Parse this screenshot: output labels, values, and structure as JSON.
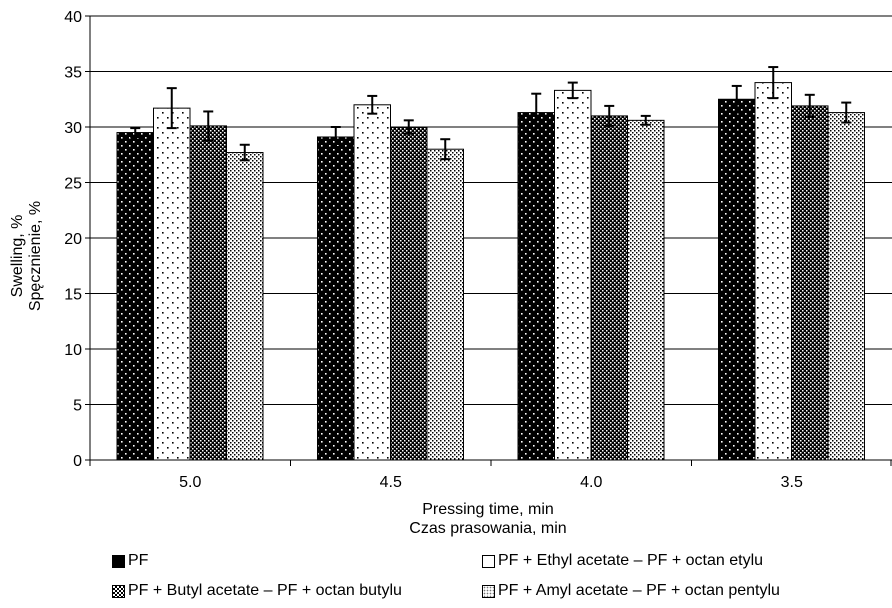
{
  "chart_data": {
    "type": "bar",
    "categories": [
      "5.0",
      "4.5",
      "4.0",
      "3.5"
    ],
    "series": [
      {
        "name": "PF",
        "values": [
          29.5,
          29.1,
          31.3,
          32.5
        ],
        "errors": [
          0.4,
          0.9,
          1.7,
          1.2
        ],
        "pattern": "dense-dark"
      },
      {
        "name": "PF + Ethyl acetate – PF + octan etylu",
        "values": [
          31.7,
          32.0,
          33.3,
          34.0
        ],
        "errors": [
          1.8,
          0.8,
          0.7,
          1.4
        ],
        "pattern": "sparse-light"
      },
      {
        "name": "PF + Butyl acetate – PF + octan butylu",
        "values": [
          30.1,
          30.0,
          31.0,
          31.9
        ],
        "errors": [
          1.3,
          0.6,
          0.9,
          1.0
        ],
        "pattern": "checker-dark"
      },
      {
        "name": "PF + Amyl acetate – PF + octan  pentylu",
        "values": [
          27.7,
          28.0,
          30.6,
          31.3
        ],
        "errors": [
          0.7,
          0.9,
          0.4,
          0.9
        ],
        "pattern": "dotted-light"
      }
    ],
    "ylabel_line1": "Swelling, %",
    "ylabel_line2": "Spęcznienie, %",
    "xlabel_line1": "Pressing time, min",
    "xlabel_line2": "Czas prasowania, min",
    "ylim": [
      0,
      40
    ],
    "yticks": [
      0,
      5,
      10,
      15,
      20,
      25,
      30,
      35,
      40
    ],
    "grid": true,
    "legend_position": "bottom"
  }
}
